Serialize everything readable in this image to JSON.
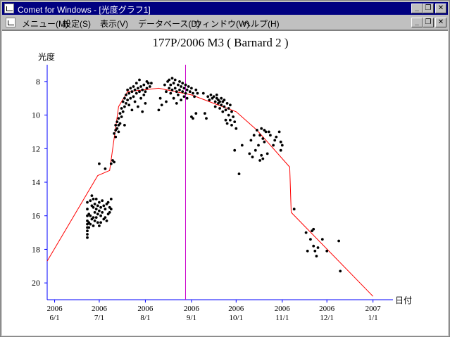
{
  "window": {
    "title": "Comet for Windows - [光度グラフ1]",
    "buttons": {
      "minimize": "_",
      "restore": "❐",
      "close": "✕"
    }
  },
  "menu": {
    "items": [
      "メニュー(M)",
      "設定(S)",
      "表示(V)",
      "データベース(D)",
      "ウィンドウ(W)",
      "ヘルプ(H)"
    ]
  },
  "colors": {
    "title_bar": "#000080",
    "trend_line": "#ff0000",
    "marker_line": "#cc00cc",
    "points": "#000000"
  },
  "chart_data": {
    "type": "scatter",
    "title": "177P/2006 M3 ( Barnard 2 )",
    "ylabel": "光度",
    "xlabel": "日付",
    "y_inverted": true,
    "ylim": [
      7,
      21
    ],
    "xlim": [
      "2006-05-27",
      "2007-01-04"
    ],
    "y_ticks": [
      8,
      10,
      12,
      14,
      16,
      18,
      20
    ],
    "x_ticks": [
      {
        "date": "2006-06-01",
        "year": "2006",
        "md": "6/1"
      },
      {
        "date": "2006-07-01",
        "year": "2006",
        "md": "7/1"
      },
      {
        "date": "2006-08-01",
        "year": "2006",
        "md": "8/1"
      },
      {
        "date": "2006-09-01",
        "year": "2006",
        "md": "9/1"
      },
      {
        "date": "2006-10-01",
        "year": "2006",
        "md": "10/1"
      },
      {
        "date": "2006-11-01",
        "year": "2006",
        "md": "11/1"
      },
      {
        "date": "2006-12-01",
        "year": "2006",
        "md": "12/1"
      },
      {
        "date": "2007-01-01",
        "year": "2007",
        "md": "1/1"
      }
    ],
    "vertical_marker": "2006-08-28",
    "trend_line": [
      [
        "2006-05-27",
        18.7
      ],
      [
        "2006-06-30",
        13.6
      ],
      [
        "2006-07-08",
        13.3
      ],
      [
        "2006-07-14",
        9.5
      ],
      [
        "2006-07-20",
        8.6
      ],
      [
        "2006-08-10",
        8.4
      ],
      [
        "2006-09-01",
        8.8
      ],
      [
        "2006-09-16",
        9.3
      ],
      [
        "2006-10-01",
        9.8
      ],
      [
        "2006-10-15",
        10.9
      ],
      [
        "2006-11-06",
        13.1
      ],
      [
        "2006-11-07",
        15.8
      ],
      [
        "2007-01-01",
        20.8
      ]
    ],
    "points": [
      [
        "2006-06-23",
        15.2
      ],
      [
        "2006-06-23",
        15.6
      ],
      [
        "2006-06-23",
        16.0
      ],
      [
        "2006-06-23",
        16.3
      ],
      [
        "2006-06-23",
        16.5
      ],
      [
        "2006-06-23",
        16.7
      ],
      [
        "2006-06-23",
        16.9
      ],
      [
        "2006-06-23",
        17.1
      ],
      [
        "2006-06-23",
        17.3
      ],
      [
        "2006-06-24",
        15.9
      ],
      [
        "2006-06-24",
        16.4
      ],
      [
        "2006-06-24",
        16.7
      ],
      [
        "2006-06-25",
        15.1
      ],
      [
        "2006-06-25",
        16.0
      ],
      [
        "2006-06-25",
        16.5
      ],
      [
        "2006-06-26",
        14.8
      ],
      [
        "2006-06-26",
        15.4
      ],
      [
        "2006-06-26",
        16.2
      ],
      [
        "2006-06-27",
        15.0
      ],
      [
        "2006-06-27",
        15.5
      ],
      [
        "2006-06-27",
        16.1
      ],
      [
        "2006-06-27",
        16.6
      ],
      [
        "2006-06-28",
        15.3
      ],
      [
        "2006-06-28",
        15.8
      ],
      [
        "2006-06-28",
        16.3
      ],
      [
        "2006-06-29",
        15.0
      ],
      [
        "2006-06-29",
        15.6
      ],
      [
        "2006-06-29",
        16.1
      ],
      [
        "2006-06-30",
        15.4
      ],
      [
        "2006-06-30",
        15.9
      ],
      [
        "2006-06-30",
        16.4
      ],
      [
        "2006-07-01",
        15.2
      ],
      [
        "2006-07-01",
        15.7
      ],
      [
        "2006-07-01",
        16.6
      ],
      [
        "2006-07-02",
        15.5
      ],
      [
        "2006-07-02",
        16.0
      ],
      [
        "2006-07-02",
        16.4
      ],
      [
        "2006-07-03",
        15.1
      ],
      [
        "2006-07-03",
        15.8
      ],
      [
        "2006-07-04",
        15.4
      ],
      [
        "2006-07-04",
        16.2
      ],
      [
        "2006-07-05",
        15.6
      ],
      [
        "2006-07-05",
        16.1
      ],
      [
        "2006-07-06",
        15.3
      ],
      [
        "2006-07-06",
        16.3
      ],
      [
        "2006-07-07",
        15.2
      ],
      [
        "2006-07-07",
        15.9
      ],
      [
        "2006-07-08",
        15.5
      ],
      [
        "2006-07-08",
        15.8
      ],
      [
        "2006-07-09",
        15.0
      ],
      [
        "2006-07-09",
        15.6
      ],
      [
        "2006-07-01",
        12.9
      ],
      [
        "2006-07-05",
        13.2
      ],
      [
        "2006-07-09",
        12.9
      ],
      [
        "2006-07-10",
        12.7
      ],
      [
        "2006-07-11",
        12.8
      ],
      [
        "2006-07-11",
        11.1
      ],
      [
        "2006-07-12",
        10.9
      ],
      [
        "2006-07-12",
        10.6
      ],
      [
        "2006-07-12",
        11.3
      ],
      [
        "2006-07-13",
        10.4
      ],
      [
        "2006-07-13",
        10.8
      ],
      [
        "2006-07-14",
        10.2
      ],
      [
        "2006-07-14",
        10.6
      ],
      [
        "2006-07-14",
        11.0
      ],
      [
        "2006-07-15",
        9.9
      ],
      [
        "2006-07-15",
        10.5
      ],
      [
        "2006-07-16",
        9.6
      ],
      [
        "2006-07-16",
        10.1
      ],
      [
        "2006-07-17",
        9.2
      ],
      [
        "2006-07-17",
        9.8
      ],
      [
        "2006-07-18",
        9.0
      ],
      [
        "2006-07-18",
        9.5
      ],
      [
        "2006-07-18",
        10.6
      ],
      [
        "2006-07-19",
        8.8
      ],
      [
        "2006-07-19",
        9.3
      ],
      [
        "2006-07-20",
        8.5
      ],
      [
        "2006-07-20",
        9.1
      ],
      [
        "2006-07-21",
        8.7
      ],
      [
        "2006-07-21",
        9.4
      ],
      [
        "2006-07-22",
        8.4
      ],
      [
        "2006-07-22",
        9.0
      ],
      [
        "2006-07-23",
        8.6
      ],
      [
        "2006-07-23",
        9.7
      ],
      [
        "2006-07-24",
        8.3
      ],
      [
        "2006-07-24",
        8.9
      ],
      [
        "2006-07-25",
        8.5
      ],
      [
        "2006-07-25",
        9.2
      ],
      [
        "2006-07-26",
        8.1
      ],
      [
        "2006-07-26",
        8.7
      ],
      [
        "2006-07-27",
        8.4
      ],
      [
        "2006-07-27",
        9.5
      ],
      [
        "2006-07-28",
        7.9
      ],
      [
        "2006-07-28",
        8.6
      ],
      [
        "2006-07-29",
        8.3
      ],
      [
        "2006-07-29",
        9.0
      ],
      [
        "2006-07-30",
        8.5
      ],
      [
        "2006-07-30",
        9.8
      ],
      [
        "2006-07-31",
        8.2
      ],
      [
        "2006-07-31",
        8.8
      ],
      [
        "2006-08-01",
        8.6
      ],
      [
        "2006-08-01",
        9.3
      ],
      [
        "2006-08-02",
        8.0
      ],
      [
        "2006-08-02",
        8.4
      ],
      [
        "2006-08-03",
        8.1
      ],
      [
        "2006-08-04",
        8.3
      ],
      [
        "2006-08-05",
        8.1
      ],
      [
        "2006-08-10",
        9.7
      ],
      [
        "2006-08-11",
        9.0
      ],
      [
        "2006-08-12",
        9.4
      ],
      [
        "2006-08-14",
        8.2
      ],
      [
        "2006-08-15",
        8.6
      ],
      [
        "2006-08-15",
        9.2
      ],
      [
        "2006-08-16",
        8.0
      ],
      [
        "2006-08-17",
        8.4
      ],
      [
        "2006-08-17",
        7.9
      ],
      [
        "2006-08-18",
        8.7
      ],
      [
        "2006-08-18",
        8.2
      ],
      [
        "2006-08-19",
        7.8
      ],
      [
        "2006-08-19",
        8.5
      ],
      [
        "2006-08-20",
        8.1
      ],
      [
        "2006-08-20",
        9.0
      ],
      [
        "2006-08-21",
        8.4
      ],
      [
        "2006-08-21",
        7.9
      ],
      [
        "2006-08-22",
        8.6
      ],
      [
        "2006-08-22",
        9.3
      ],
      [
        "2006-08-23",
        8.2
      ],
      [
        "2006-08-23",
        8.8
      ],
      [
        "2006-08-24",
        8.0
      ],
      [
        "2006-08-24",
        8.5
      ],
      [
        "2006-08-25",
        8.3
      ],
      [
        "2006-08-25",
        9.1
      ],
      [
        "2006-08-26",
        8.6
      ],
      [
        "2006-08-26",
        8.1
      ],
      [
        "2006-08-27",
        8.4
      ],
      [
        "2006-08-27",
        8.9
      ],
      [
        "2006-08-28",
        8.2
      ],
      [
        "2006-08-28",
        8.7
      ],
      [
        "2006-08-29",
        8.5
      ],
      [
        "2006-08-29",
        9.0
      ],
      [
        "2006-08-30",
        8.3
      ],
      [
        "2006-08-31",
        8.6
      ],
      [
        "2006-09-01",
        8.4
      ],
      [
        "2006-09-02",
        8.7
      ],
      [
        "2006-09-03",
        8.9
      ],
      [
        "2006-09-04",
        8.5
      ],
      [
        "2006-09-05",
        8.7
      ],
      [
        "2006-09-01",
        10.1
      ],
      [
        "2006-09-02",
        10.2
      ],
      [
        "2006-09-04",
        9.9
      ],
      [
        "2006-09-09",
        8.7
      ],
      [
        "2006-09-10",
        9.9
      ],
      [
        "2006-09-11",
        10.2
      ],
      [
        "2006-09-12",
        8.9
      ],
      [
        "2006-09-13",
        9.1
      ],
      [
        "2006-09-14",
        8.8
      ],
      [
        "2006-09-15",
        9.0
      ],
      [
        "2006-09-16",
        8.9
      ],
      [
        "2006-09-17",
        9.2
      ],
      [
        "2006-09-17",
        9.5
      ],
      [
        "2006-09-18",
        9.0
      ],
      [
        "2006-09-18",
        8.8
      ],
      [
        "2006-09-19",
        9.3
      ],
      [
        "2006-09-19",
        9.1
      ],
      [
        "2006-09-20",
        9.2
      ],
      [
        "2006-09-20",
        9.6
      ],
      [
        "2006-09-21",
        9.0
      ],
      [
        "2006-09-21",
        9.4
      ],
      [
        "2006-09-22",
        9.2
      ],
      [
        "2006-09-22",
        9.8
      ],
      [
        "2006-09-23",
        9.5
      ],
      [
        "2006-09-23",
        9.1
      ],
      [
        "2006-09-24",
        9.7
      ],
      [
        "2006-09-24",
        10.3
      ],
      [
        "2006-09-25",
        9.3
      ],
      [
        "2006-09-25",
        10.5
      ],
      [
        "2006-09-26",
        9.6
      ],
      [
        "2006-09-26",
        10.0
      ],
      [
        "2006-09-27",
        10.3
      ],
      [
        "2006-09-27",
        9.4
      ],
      [
        "2006-09-28",
        9.8
      ],
      [
        "2006-09-28",
        10.6
      ],
      [
        "2006-09-29",
        10.1
      ],
      [
        "2006-09-30",
        10.4
      ],
      [
        "2006-09-30",
        12.1
      ],
      [
        "2006-10-01",
        10.8
      ],
      [
        "2006-10-03",
        13.5
      ],
      [
        "2006-10-05",
        11.8
      ],
      [
        "2006-10-10",
        12.3
      ],
      [
        "2006-10-11",
        11.5
      ],
      [
        "2006-10-12",
        12.5
      ],
      [
        "2006-10-13",
        11.2
      ],
      [
        "2006-10-14",
        12.1
      ],
      [
        "2006-10-15",
        10.9
      ],
      [
        "2006-10-16",
        11.8
      ],
      [
        "2006-10-17",
        11.2
      ],
      [
        "2006-10-17",
        12.7
      ],
      [
        "2006-10-18",
        10.8
      ],
      [
        "2006-10-18",
        12.4
      ],
      [
        "2006-10-19",
        11.4
      ],
      [
        "2006-10-19",
        12.6
      ],
      [
        "2006-10-20",
        10.9
      ],
      [
        "2006-10-20",
        11.6
      ],
      [
        "2006-10-21",
        11.0
      ],
      [
        "2006-10-22",
        12.3
      ],
      [
        "2006-10-23",
        11.0
      ],
      [
        "2006-10-24",
        11.2
      ],
      [
        "2006-10-26",
        11.8
      ],
      [
        "2006-10-27",
        11.5
      ],
      [
        "2006-10-28",
        11.3
      ],
      [
        "2006-10-30",
        11.0
      ],
      [
        "2006-10-31",
        11.6
      ],
      [
        "2006-10-31",
        12.1
      ],
      [
        "2006-11-01",
        11.8
      ],
      [
        "2006-11-09",
        15.6
      ],
      [
        "2006-11-17",
        17.0
      ],
      [
        "2006-11-18",
        18.1
      ],
      [
        "2006-11-20",
        17.4
      ],
      [
        "2006-11-21",
        16.9
      ],
      [
        "2006-11-22",
        17.8
      ],
      [
        "2006-11-22",
        16.8
      ],
      [
        "2006-11-23",
        18.1
      ],
      [
        "2006-11-24",
        18.4
      ],
      [
        "2006-11-25",
        17.9
      ],
      [
        "2006-11-28",
        17.4
      ],
      [
        "2006-12-01",
        18.1
      ],
      [
        "2006-12-09",
        17.5
      ],
      [
        "2006-12-10",
        19.3
      ]
    ]
  }
}
